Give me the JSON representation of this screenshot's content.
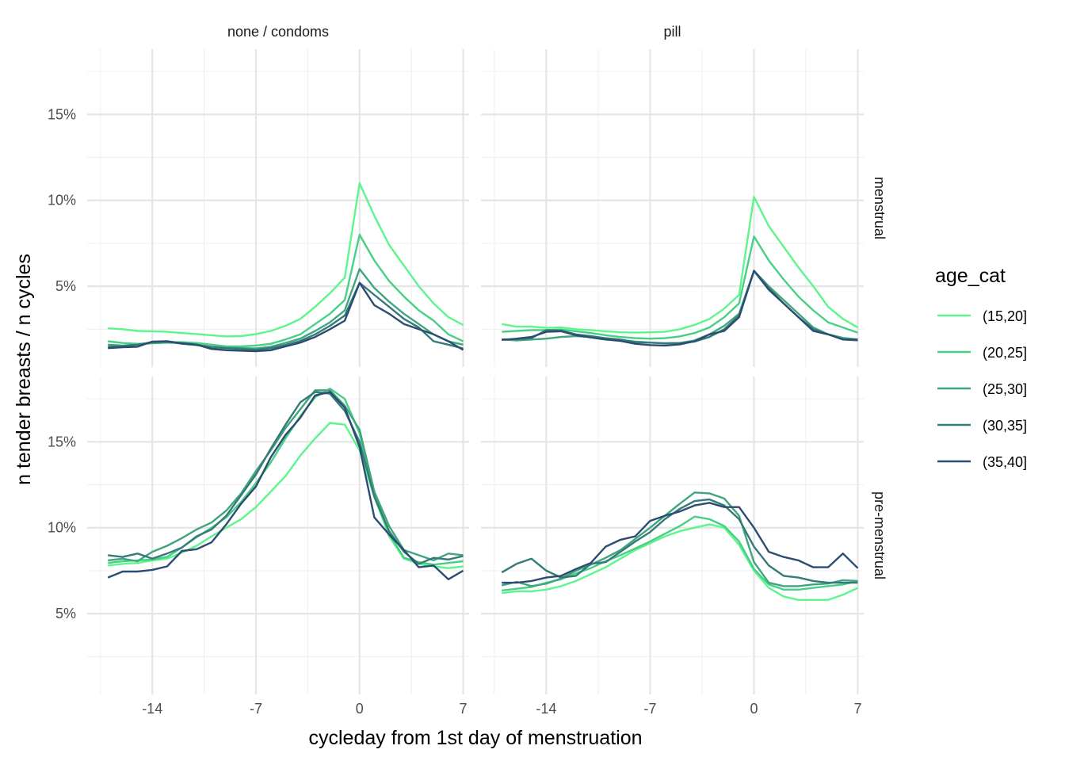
{
  "chart_data": {
    "type": "line",
    "xlabel": "cycleday from 1st day of menstruation",
    "ylabel": "n tender breasts / n cycles",
    "x_ticks": [
      -14,
      -7,
      0,
      7
    ],
    "x_tick_labels": [
      "-14",
      "-7",
      "0",
      "7"
    ],
    "y_ticks": [
      0.05,
      0.1,
      0.15
    ],
    "y_tick_labels": [
      "5%",
      "10%",
      "15%"
    ],
    "xlim": [
      -18.4,
      7.4
    ],
    "ylim": [
      0.003,
      0.188
    ],
    "grid": true,
    "legend": {
      "title": "age_cat",
      "placement": "right",
      "entries": [
        {
          "label": "(15,20]",
          "color": "#5DF58C"
        },
        {
          "label": "(20,25]",
          "color": "#48CF86"
        },
        {
          "label": "(25,30]",
          "color": "#3FA57E"
        },
        {
          "label": "(30,35]",
          "color": "#357A79"
        },
        {
          "label": "(35,40]",
          "color": "#2C4C71"
        }
      ]
    },
    "facets": {
      "columns": [
        "none / condoms",
        "pill"
      ],
      "rows": [
        "menstrual",
        "pre-menstrual"
      ]
    },
    "x": [
      -17,
      -16,
      -15,
      -14,
      -13,
      -12,
      -11,
      -10,
      -9,
      -8,
      -7,
      -6,
      -5,
      -4,
      -3,
      -2,
      -1,
      0,
      1,
      2,
      3,
      4,
      5,
      6,
      7
    ],
    "panels": [
      {
        "col": "none / condoms",
        "row": "menstrual",
        "series": [
          {
            "name": "(15,20]",
            "values": [
              0.0255,
              0.025,
              0.024,
              0.0238,
              0.0235,
              0.0228,
              0.0222,
              0.0215,
              0.0208,
              0.021,
              0.0222,
              0.024,
              0.027,
              0.031,
              0.038,
              0.046,
              0.055,
              0.11,
              0.091,
              0.074,
              0.062,
              0.05,
              0.04,
              0.032,
              0.0275
            ]
          },
          {
            "name": "(20,25]",
            "values": [
              0.018,
              0.017,
              0.0165,
              0.0168,
              0.0172,
              0.0175,
              0.017,
              0.016,
              0.015,
              0.015,
              0.0155,
              0.0165,
              0.019,
              0.022,
              0.028,
              0.034,
              0.042,
              0.08,
              0.065,
              0.053,
              0.044,
              0.036,
              0.03,
              0.022,
              0.018
            ]
          },
          {
            "name": "(25,30]",
            "values": [
              0.016,
              0.0155,
              0.016,
              0.017,
              0.0172,
              0.017,
              0.016,
              0.0148,
              0.0142,
              0.014,
              0.0138,
              0.0148,
              0.017,
              0.0195,
              0.024,
              0.029,
              0.036,
              0.06,
              0.049,
              0.041,
              0.034,
              0.028,
              0.022,
              0.018,
              0.016
            ]
          },
          {
            "name": "(30,35]",
            "values": [
              0.0148,
              0.0152,
              0.016,
              0.0175,
              0.0178,
              0.0165,
              0.0158,
              0.0145,
              0.014,
              0.0135,
              0.013,
              0.014,
              0.0158,
              0.0182,
              0.022,
              0.027,
              0.033,
              0.052,
              0.045,
              0.038,
              0.031,
              0.026,
              0.018,
              0.016,
              0.0138
            ]
          },
          {
            "name": "(35,40]",
            "values": [
              0.014,
              0.0145,
              0.0148,
              0.0178,
              0.018,
              0.0168,
              0.016,
              0.0135,
              0.0128,
              0.0125,
              0.0122,
              0.0128,
              0.015,
              0.0172,
              0.0205,
              0.025,
              0.03,
              0.052,
              0.039,
              0.034,
              0.028,
              0.025,
              0.022,
              0.018,
              0.013
            ]
          }
        ]
      },
      {
        "col": "pill",
        "row": "menstrual",
        "series": [
          {
            "name": "(15,20]",
            "values": [
              0.028,
              0.0265,
              0.0265,
              0.0258,
              0.026,
              0.025,
              0.0245,
              0.0238,
              0.0232,
              0.023,
              0.0232,
              0.0235,
              0.025,
              0.0275,
              0.031,
              0.037,
              0.045,
              0.102,
              0.085,
              0.073,
              0.061,
              0.05,
              0.038,
              0.031,
              0.026
            ]
          },
          {
            "name": "(20,25]",
            "values": [
              0.0235,
              0.024,
              0.0245,
              0.0245,
              0.0248,
              0.0238,
              0.0228,
              0.0215,
              0.0205,
              0.0198,
              0.0195,
              0.0198,
              0.0208,
              0.0228,
              0.026,
              0.032,
              0.04,
              0.079,
              0.065,
              0.054,
              0.044,
              0.036,
              0.029,
              0.026,
              0.023
            ]
          },
          {
            "name": "(25,30]",
            "values": [
              0.019,
              0.0185,
              0.019,
              0.0195,
              0.0205,
              0.021,
              0.0205,
              0.0195,
              0.0188,
              0.0178,
              0.0172,
              0.0168,
              0.017,
              0.0185,
              0.022,
              0.027,
              0.034,
              0.059,
              0.05,
              0.042,
              0.034,
              0.026,
              0.022,
              0.02,
              0.019
            ]
          },
          {
            "name": "(30,35]",
            "values": [
              0.019,
              0.0192,
              0.0198,
              0.0245,
              0.0242,
              0.022,
              0.021,
              0.0198,
              0.019,
              0.0175,
              0.0172,
              0.0168,
              0.017,
              0.0178,
              0.0205,
              0.025,
              0.033,
              0.059,
              0.049,
              0.04,
              0.032,
              0.025,
              0.022,
              0.019,
              0.0185
            ]
          },
          {
            "name": "(35,40]",
            "values": [
              0.0188,
              0.0195,
              0.0205,
              0.0235,
              0.0238,
              0.0215,
              0.0202,
              0.019,
              0.0182,
              0.0165,
              0.0158,
              0.0155,
              0.0162,
              0.018,
              0.022,
              0.024,
              0.032,
              0.059,
              0.048,
              0.04,
              0.032,
              0.024,
              0.022,
              0.019,
              0.019
            ]
          }
        ]
      },
      {
        "col": "none / condoms",
        "row": "pre-menstrual",
        "series": [
          {
            "name": "(15,20]",
            "values": [
              0.078,
              0.079,
              0.0795,
              0.081,
              0.082,
              0.0855,
              0.0895,
              0.095,
              0.1,
              0.105,
              0.112,
              0.121,
              0.13,
              0.142,
              0.152,
              0.161,
              0.16,
              0.145,
              0.118,
              0.095,
              0.082,
              0.079,
              0.0775,
              0.0765,
              0.0775
            ]
          },
          {
            "name": "(20,25]",
            "values": [
              0.0795,
              0.0805,
              0.081,
              0.0815,
              0.083,
              0.0885,
              0.0945,
              0.1,
              0.106,
              0.115,
              0.126,
              0.138,
              0.152,
              0.165,
              0.176,
              0.181,
              0.175,
              0.155,
              0.12,
              0.0965,
              0.0825,
              0.08,
              0.0785,
              0.0795,
              0.0805
            ]
          },
          {
            "name": "(25,30]",
            "values": [
              0.081,
              0.082,
              0.0805,
              0.086,
              0.0895,
              0.094,
              0.099,
              0.103,
              0.11,
              0.12,
              0.133,
              0.145,
              0.158,
              0.169,
              0.18,
              0.18,
              0.171,
              0.157,
              0.121,
              0.101,
              0.087,
              0.084,
              0.081,
              0.085,
              0.084
            ]
          },
          {
            "name": "(30,35]",
            "values": [
              0.084,
              0.083,
              0.085,
              0.082,
              0.085,
              0.0885,
              0.095,
              0.099,
              0.107,
              0.119,
              0.131,
              0.146,
              0.16,
              0.173,
              0.179,
              0.178,
              0.168,
              0.15,
              0.118,
              0.098,
              0.086,
              0.079,
              0.0825,
              0.0815,
              0.0835
            ]
          },
          {
            "name": "(35,40]",
            "values": [
              0.071,
              0.0745,
              0.0745,
              0.0755,
              0.0775,
              0.0865,
              0.0875,
              0.0915,
              0.102,
              0.114,
              0.124,
              0.141,
              0.154,
              0.164,
              0.177,
              0.179,
              0.17,
              0.147,
              0.106,
              0.096,
              0.087,
              0.077,
              0.078,
              0.07,
              0.075
            ]
          }
        ]
      },
      {
        "col": "pill",
        "row": "pre-menstrual",
        "series": [
          {
            "name": "(15,20]",
            "values": [
              0.062,
              0.063,
              0.063,
              0.064,
              0.066,
              0.069,
              0.073,
              0.077,
              0.082,
              0.087,
              0.091,
              0.095,
              0.098,
              0.1,
              0.102,
              0.1,
              0.09,
              0.075,
              0.065,
              0.06,
              0.058,
              0.058,
              0.058,
              0.061,
              0.065
            ]
          },
          {
            "name": "(20,25]",
            "values": [
              0.0635,
              0.0645,
              0.0655,
              0.068,
              0.07,
              0.0735,
              0.0765,
              0.0805,
              0.084,
              0.088,
              0.092,
              0.0965,
              0.101,
              0.1065,
              0.105,
              0.101,
              0.092,
              0.076,
              0.067,
              0.064,
              0.064,
              0.065,
              0.066,
              0.067,
              0.069
            ]
          },
          {
            "name": "(25,30]",
            "values": [
              0.0665,
              0.0685,
              0.066,
              0.0675,
              0.0705,
              0.075,
              0.0785,
              0.0825,
              0.087,
              0.0935,
              0.1,
              0.107,
              0.114,
              0.1205,
              0.12,
              0.117,
              0.107,
              0.08,
              0.068,
              0.066,
              0.066,
              0.067,
              0.0675,
              0.0695,
              0.069
            ]
          },
          {
            "name": "(30,35]",
            "values": [
              0.074,
              0.079,
              0.082,
              0.075,
              0.071,
              0.072,
              0.079,
              0.08,
              0.086,
              0.092,
              0.0975,
              0.105,
              0.111,
              0.1155,
              0.1165,
              0.113,
              0.105,
              0.089,
              0.078,
              0.072,
              0.071,
              0.069,
              0.068,
              0.068,
              0.068
            ]
          },
          {
            "name": "(35,40]",
            "values": [
              0.068,
              0.068,
              0.069,
              0.071,
              0.072,
              0.076,
              0.0795,
              0.089,
              0.093,
              0.095,
              0.104,
              0.107,
              0.1095,
              0.113,
              0.1145,
              0.112,
              0.112,
              0.1,
              0.086,
              0.083,
              0.081,
              0.077,
              0.077,
              0.085,
              0.0765
            ]
          }
        ]
      }
    ]
  }
}
